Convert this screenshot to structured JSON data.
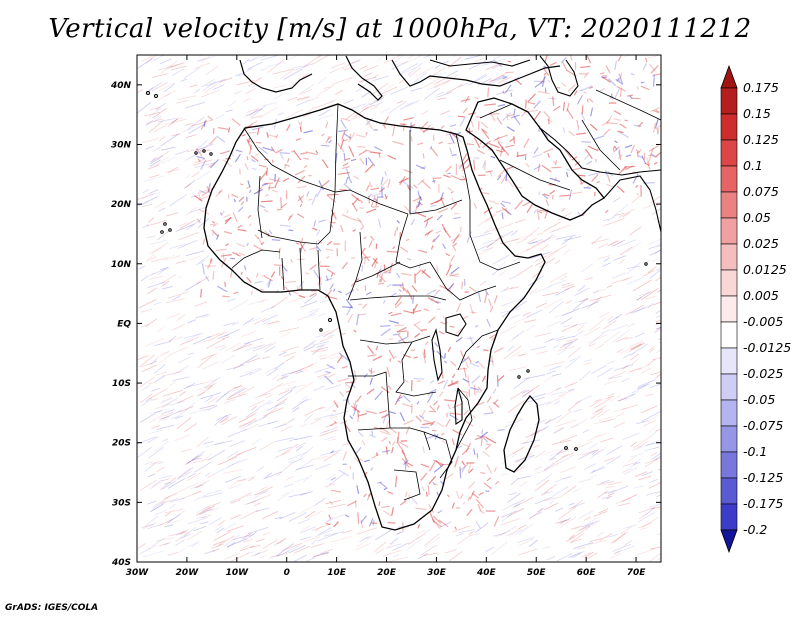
{
  "title": "Vertical velocity [m/s] at 1000hPa, VT: 2020111212",
  "credit": "GrADS: IGES/COLA",
  "map": {
    "lon_range": [
      -30,
      75
    ],
    "lat_range": [
      -40,
      45
    ],
    "lon_ticks": [
      {
        "value": -30,
        "label": "30W"
      },
      {
        "value": -20,
        "label": "20W"
      },
      {
        "value": -10,
        "label": "10W"
      },
      {
        "value": 0,
        "label": "0"
      },
      {
        "value": 10,
        "label": "10E"
      },
      {
        "value": 20,
        "label": "20E"
      },
      {
        "value": 30,
        "label": "30E"
      },
      {
        "value": 40,
        "label": "40E"
      },
      {
        "value": 50,
        "label": "50E"
      },
      {
        "value": 60,
        "label": "60E"
      },
      {
        "value": 70,
        "label": "70E"
      }
    ],
    "lat_ticks": [
      {
        "value": 40,
        "label": "40N"
      },
      {
        "value": 30,
        "label": "30N"
      },
      {
        "value": 20,
        "label": "20N"
      },
      {
        "value": 10,
        "label": "10N"
      },
      {
        "value": 0,
        "label": "EQ"
      },
      {
        "value": -10,
        "label": "10S"
      },
      {
        "value": -20,
        "label": "20S"
      },
      {
        "value": -30,
        "label": "30S"
      },
      {
        "value": -40,
        "label": "40S"
      }
    ]
  },
  "colorbar": {
    "levels": [
      {
        "label": "0.175",
        "color": "#b41e1e"
      },
      {
        "label": "0.15",
        "color": "#cd2d2d"
      },
      {
        "label": "0.125",
        "color": "#dc4646"
      },
      {
        "label": "0.1",
        "color": "#e66464"
      },
      {
        "label": "0.075",
        "color": "#eb8282"
      },
      {
        "label": "0.05",
        "color": "#f0a0a0"
      },
      {
        "label": "0.025",
        "color": "#f5bebe"
      },
      {
        "label": "0.0125",
        "color": "#fad7d7"
      },
      {
        "label": "0.005",
        "color": "#fdebeb"
      },
      {
        "label": "-0.005",
        "color": "#ffffff"
      },
      {
        "label": "-0.0125",
        "color": "#e6e6fa"
      },
      {
        "label": "-0.025",
        "color": "#cdcdf5"
      },
      {
        "label": "-0.05",
        "color": "#b4b4f0"
      },
      {
        "label": "-0.075",
        "color": "#9696e6"
      },
      {
        "label": "-0.1",
        "color": "#7878dc"
      },
      {
        "label": "-0.125",
        "color": "#5a5ad2"
      },
      {
        "label": "-0.175",
        "color": "#3c3cc8"
      },
      {
        "label": "-0.2",
        "color": "#2323b4"
      }
    ],
    "top_color": "#a01414",
    "bottom_color": "#14149b"
  },
  "colors": {
    "positive": "#e05050",
    "negative": "#6464dc",
    "coast": "#000000",
    "border": "#000000"
  }
}
